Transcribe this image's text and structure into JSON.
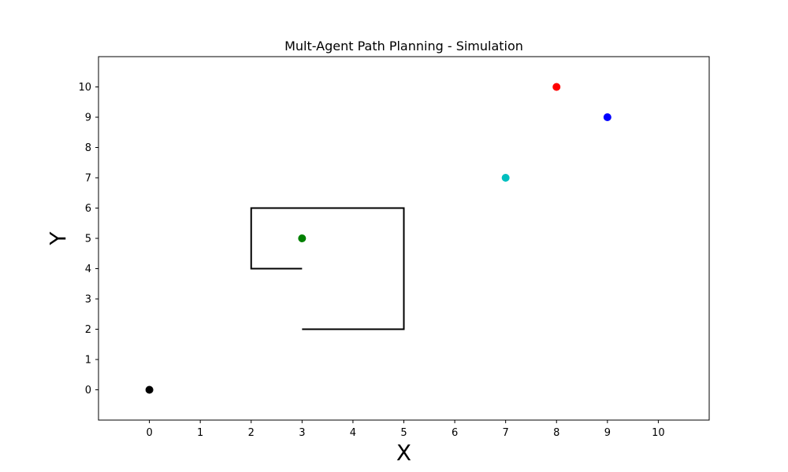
{
  "chart_data": {
    "type": "scatter",
    "title": "Mult-Agent Path Planning - Simulation",
    "xlabel": "X",
    "ylabel": "Y",
    "xlim": [
      -1,
      11
    ],
    "ylim": [
      -1,
      11
    ],
    "xticks": [
      0,
      1,
      2,
      3,
      4,
      5,
      6,
      7,
      8,
      9,
      10
    ],
    "yticks": [
      0,
      1,
      2,
      3,
      4,
      5,
      6,
      7,
      8,
      9,
      10
    ],
    "grid": false,
    "legend": "none",
    "agents": [
      {
        "x": 0,
        "y": 0,
        "color": "#000000"
      },
      {
        "x": 3,
        "y": 5,
        "color": "#008000"
      },
      {
        "x": 7,
        "y": 7,
        "color": "#00bfbf"
      },
      {
        "x": 8,
        "y": 10,
        "color": "#ff0000"
      },
      {
        "x": 9,
        "y": 9,
        "color": "#0000ff"
      }
    ],
    "obstacle": {
      "color": "#000000",
      "points": [
        [
          3,
          4
        ],
        [
          2,
          4
        ],
        [
          2,
          6
        ],
        [
          5,
          6
        ],
        [
          5,
          2
        ],
        [
          3,
          2
        ]
      ]
    }
  }
}
